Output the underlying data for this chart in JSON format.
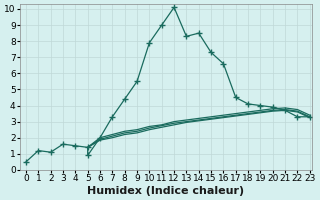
{
  "xlabel": "Humidex (Indice chaleur)",
  "bg_color": "#d6f0ef",
  "grid_color": "#c0d8d8",
  "line_color": "#1a6b5e",
  "xlim": [
    -0.5,
    23.2
  ],
  "ylim": [
    0,
    10.3
  ],
  "xticks": [
    0,
    1,
    2,
    3,
    4,
    5,
    6,
    7,
    8,
    9,
    10,
    11,
    12,
    13,
    14,
    15,
    16,
    17,
    18,
    19,
    20,
    21,
    22,
    23
  ],
  "yticks": [
    0,
    1,
    2,
    3,
    4,
    5,
    6,
    7,
    8,
    9,
    10
  ],
  "series1_x": [
    0,
    1,
    2,
    3,
    4,
    5,
    5,
    6,
    7,
    8,
    9,
    10,
    11,
    12,
    13,
    14,
    15,
    16,
    17,
    18,
    19,
    20,
    21,
    22,
    23
  ],
  "series1_y": [
    0.5,
    1.2,
    1.1,
    1.6,
    1.5,
    1.4,
    0.9,
    2.0,
    3.3,
    4.4,
    5.5,
    7.9,
    9.0,
    10.1,
    8.3,
    8.5,
    7.3,
    6.6,
    4.5,
    4.1,
    4.0,
    3.9,
    3.7,
    3.3,
    3.3
  ],
  "series2_x": [
    5,
    6,
    7,
    8,
    9,
    10,
    11,
    12,
    13,
    14,
    15,
    16,
    17,
    18,
    19,
    20,
    21,
    22,
    23
  ],
  "series2_y": [
    1.4,
    2.0,
    2.2,
    2.4,
    2.5,
    2.7,
    2.8,
    3.0,
    3.1,
    3.2,
    3.3,
    3.4,
    3.5,
    3.6,
    3.7,
    3.8,
    3.85,
    3.75,
    3.4
  ],
  "series3_x": [
    5,
    6,
    7,
    8,
    9,
    10,
    11,
    12,
    13,
    14,
    15,
    16,
    17,
    18,
    19,
    20,
    21,
    22,
    23
  ],
  "series3_y": [
    1.4,
    1.9,
    2.1,
    2.3,
    2.4,
    2.6,
    2.75,
    2.9,
    3.0,
    3.1,
    3.2,
    3.3,
    3.4,
    3.5,
    3.6,
    3.7,
    3.75,
    3.65,
    3.3
  ],
  "series4_x": [
    5,
    6,
    7,
    8,
    9,
    10,
    11,
    12,
    13,
    14,
    15,
    16,
    17,
    18,
    19,
    20,
    21,
    22,
    23
  ],
  "series4_y": [
    1.4,
    1.85,
    2.0,
    2.2,
    2.3,
    2.5,
    2.65,
    2.8,
    2.95,
    3.05,
    3.15,
    3.25,
    3.35,
    3.45,
    3.55,
    3.65,
    3.7,
    3.6,
    3.25
  ],
  "tick_fontsize": 6.5,
  "xlabel_fontsize": 8.0
}
